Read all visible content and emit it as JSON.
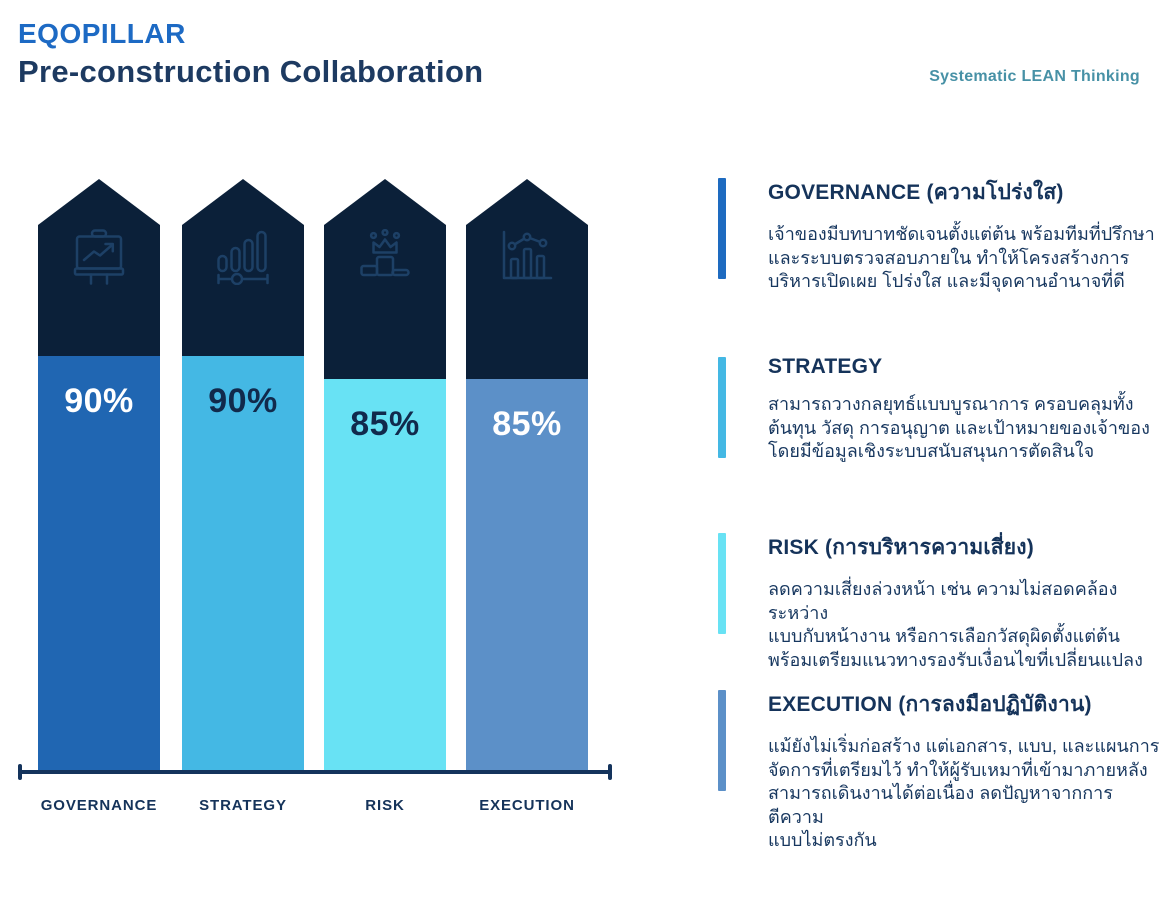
{
  "header": {
    "title": "EQOPILLAR",
    "subtitle": "Pre-construction Collaboration",
    "brand": "Systematic LEAN Thinking"
  },
  "chart_data": {
    "type": "bar",
    "title": "EQOPILLAR Pre-construction Collaboration",
    "categories": [
      "GOVERNANCE",
      "STRATEGY",
      "RISK",
      "EXECUTION"
    ],
    "values": [
      90,
      90,
      85,
      85
    ],
    "value_labels": [
      "90%",
      "90%",
      "85%",
      "85%"
    ],
    "ylim": [
      0,
      100
    ],
    "grid": false,
    "legend": "none",
    "bar_colors": [
      "#2066b2",
      "#44b8e4",
      "#68e2f4",
      "#5c90c8"
    ],
    "value_label_colors": [
      "#ffffff",
      "#112a4c",
      "#112a4c",
      "#ffffff"
    ],
    "roof_color": "#0b2039",
    "axis_color": "#14335c",
    "icons": [
      "presentation-trend-icon",
      "bar-levels-slider-icon",
      "podium-crown-icon",
      "combo-chart-icon"
    ]
  },
  "sections": [
    {
      "title": "GOVERNANCE (ความโปร่งใส)",
      "accent_color": "#1e6bc0",
      "body": "เจ้าของมีบทบาทชัดเจนตั้งแต่ต้น พร้อมทีมที่ปรึกษา\nและระบบตรวจสอบภายใน ทำให้โครงสร้างการ\nบริหารเปิดเผย โปร่งใส และมีจุดคานอำนาจที่ดี"
    },
    {
      "title": "STRATEGY",
      "accent_color": "#44b8e4",
      "body": "สามารถวางกลยุทธ์แบบบูรณาการ ครอบคลุมทั้ง\nต้นทุน วัสดุ การอนุญาต และเป้าหมายของเจ้าของ\nโดยมีข้อมูลเชิงระบบสนับสนุนการตัดสินใจ"
    },
    {
      "title": "RISK (การบริหารความเสี่ยง)",
      "accent_color": "#68e2f4",
      "body": "ลดความเสี่ยงล่วงหน้า เช่น ความไม่สอดคล้องระหว่าง\nแบบกับหน้างาน หรือการเลือกวัสดุผิดตั้งแต่ต้น\nพร้อมเตรียมแนวทางรองรับเงื่อนไขที่เปลี่ยนแปลง"
    },
    {
      "title": "EXECUTION (การลงมือปฏิบัติงาน)",
      "accent_color": "#5c90c8",
      "body": "แม้ยังไม่เริ่มก่อสร้าง แต่เอกสาร, แบบ, และแผนการ\nจัดการที่เตรียมไว้ ทำให้ผู้รับเหมาที่เข้ามาภายหลัง\nสามารถเดินงานได้ต่อเนื่อง ลดปัญหาจากการตีความ\nแบบไม่ตรงกัน"
    }
  ]
}
